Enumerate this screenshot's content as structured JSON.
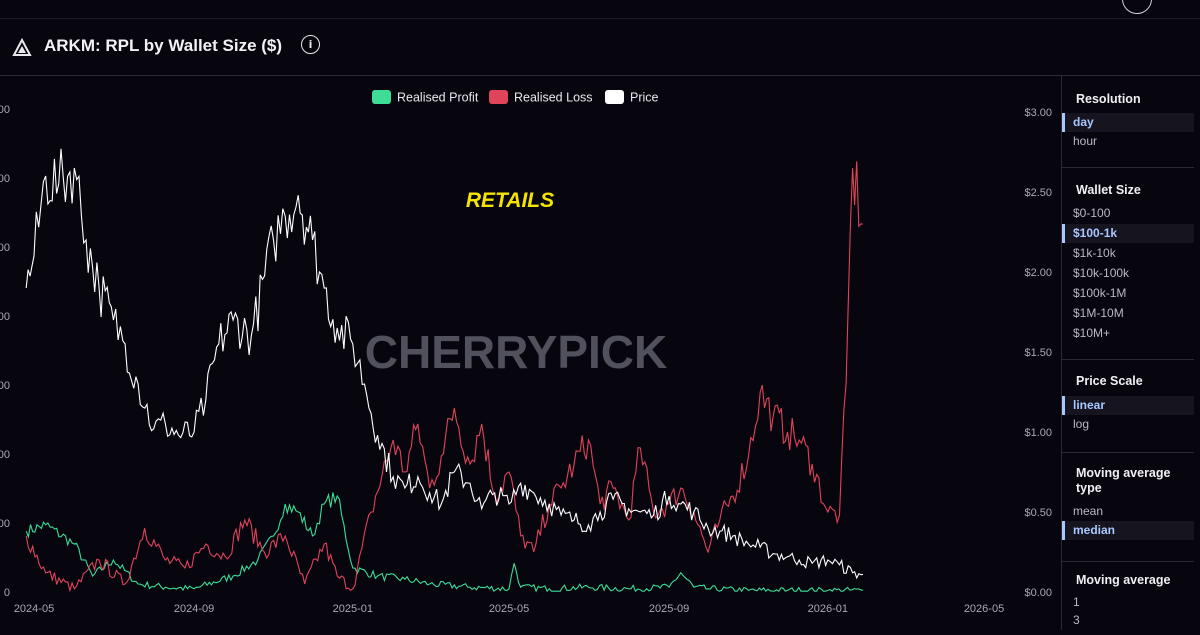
{
  "header": {
    "title": "ARKM: RPL by Wallet Size ($)",
    "info_icon": "info-circle-icon",
    "logo_icon": "arkham-logo-icon"
  },
  "sidebar": {
    "resolution": {
      "title": "Resolution",
      "options": [
        "day",
        "hour"
      ],
      "selected": 0
    },
    "wallet_size": {
      "title": "Wallet Size",
      "options": [
        "$0-100",
        "$100-1k",
        "$1k-10k",
        "$10k-100k",
        "$100k-1M",
        "$1M-10M",
        "$10M+"
      ],
      "selected": 1
    },
    "price_scale": {
      "title": "Price Scale",
      "options": [
        "linear",
        "log"
      ],
      "selected": 0
    },
    "ma_type": {
      "title": "Moving average type",
      "options": [
        "mean",
        "median"
      ],
      "selected": 1
    },
    "ma": {
      "title": "Moving average",
      "options": [
        "1",
        "3"
      ],
      "selected": -1
    }
  },
  "chart_data": {
    "type": "line",
    "legend": [
      {
        "name": "Realised Profit",
        "color": "#3ddc97"
      },
      {
        "name": "Realised Loss",
        "color": "#e0435a"
      },
      {
        "name": "Price",
        "color": "#ffffff"
      }
    ],
    "legend_position": "top-center",
    "annotation": "RETAILS",
    "watermark": "CHERRYPICK",
    "x_ticks": [
      "2024-05",
      "2024-09",
      "2025-01",
      "2025-05",
      "2025-09",
      "2026-01",
      "2026-05"
    ],
    "right_axis": {
      "ticks": [
        "$0.00",
        "$0.50",
        "$1.00",
        "$1.50",
        "$2.00",
        "$2.50",
        "$3.00"
      ],
      "range": [
        0,
        3
      ]
    },
    "left_axis_partial_labels": [
      "0",
      "00",
      "00",
      "00",
      "00",
      "00",
      "00",
      "00",
      "00"
    ],
    "price": {
      "x": [
        "2024-04-25",
        "2024-05-01",
        "2024-05-10",
        "2024-05-20",
        "2024-06-01",
        "2024-06-10",
        "2024-06-20",
        "2024-07-01",
        "2024-07-10",
        "2024-07-20",
        "2024-08-01",
        "2024-08-10",
        "2024-08-20",
        "2024-09-01",
        "2024-09-10",
        "2024-09-20",
        "2024-10-01",
        "2024-10-15",
        "2024-11-01",
        "2024-11-10",
        "2024-11-20",
        "2024-12-01",
        "2024-12-10",
        "2024-12-20",
        "2025-01-01",
        "2025-01-10",
        "2025-01-20",
        "2025-02-01",
        "2025-02-10",
        "2025-02-20",
        "2025-03-01",
        "2025-03-10",
        "2025-03-20",
        "2025-04-01",
        "2025-04-10",
        "2025-04-20",
        "2025-05-01",
        "2025-05-10",
        "2025-05-20",
        "2025-06-01",
        "2025-06-10",
        "2025-06-20",
        "2025-07-01",
        "2025-07-10",
        "2025-07-20",
        "2025-08-01",
        "2025-08-10",
        "2025-08-20",
        "2025-09-01",
        "2025-09-10",
        "2025-09-20",
        "2025-10-01",
        "2025-10-10",
        "2025-10-20",
        "2025-11-01",
        "2025-11-10",
        "2025-11-20",
        "2025-12-01",
        "2025-12-10",
        "2025-12-20",
        "2026-01-01",
        "2026-01-10",
        "2026-01-20",
        "2026-01-28"
      ],
      "y": [
        1.9,
        2.1,
        2.6,
        2.55,
        2.65,
        2.2,
        1.9,
        1.7,
        1.55,
        1.3,
        1.02,
        1.05,
        0.98,
        1.0,
        1.2,
        1.55,
        1.7,
        1.6,
        2.2,
        2.35,
        2.48,
        2.2,
        1.9,
        1.65,
        1.55,
        1.3,
        0.98,
        0.72,
        0.65,
        0.72,
        0.62,
        0.55,
        0.75,
        0.68,
        0.52,
        0.62,
        0.55,
        0.68,
        0.62,
        0.55,
        0.48,
        0.45,
        0.42,
        0.5,
        0.58,
        0.52,
        0.5,
        0.48,
        0.6,
        0.55,
        0.5,
        0.4,
        0.38,
        0.35,
        0.3,
        0.28,
        0.24,
        0.22,
        0.2,
        0.18,
        0.2,
        0.17,
        0.12,
        0.11
      ]
    },
    "realised_loss": {
      "x": [
        "2024-04-25",
        "2024-05-10",
        "2024-06-01",
        "2024-06-20",
        "2024-07-10",
        "2024-07-25",
        "2024-08-10",
        "2024-08-25",
        "2024-09-10",
        "2024-09-25",
        "2024-10-10",
        "2024-10-25",
        "2024-11-10",
        "2024-11-25",
        "2024-12-10",
        "2024-12-20",
        "2025-01-01",
        "2025-01-15",
        "2025-02-01",
        "2025-02-10",
        "2025-02-20",
        "2025-03-01",
        "2025-03-10",
        "2025-03-20",
        "2025-04-01",
        "2025-04-10",
        "2025-04-20",
        "2025-05-01",
        "2025-05-10",
        "2025-05-20",
        "2025-06-01",
        "2025-06-10",
        "2025-06-20",
        "2025-07-01",
        "2025-07-10",
        "2025-07-20",
        "2025-08-01",
        "2025-08-10",
        "2025-08-20",
        "2025-09-01",
        "2025-09-10",
        "2025-09-20",
        "2025-10-01",
        "2025-10-10",
        "2025-10-20",
        "2025-11-01",
        "2025-11-10",
        "2025-11-20",
        "2025-12-01",
        "2025-12-10",
        "2025-12-20",
        "2026-01-01",
        "2026-01-10",
        "2026-01-15",
        "2026-01-20",
        "2026-01-28"
      ],
      "y": [
        0.35,
        0.12,
        0.02,
        0.2,
        0.05,
        0.4,
        0.2,
        0.15,
        0.3,
        0.22,
        0.45,
        0.25,
        0.35,
        0.05,
        0.3,
        0.1,
        0.02,
        0.5,
        0.95,
        0.75,
        1.05,
        0.65,
        0.85,
        1.15,
        0.8,
        1.05,
        0.6,
        0.75,
        0.35,
        0.25,
        0.55,
        0.65,
        0.8,
        0.95,
        0.55,
        0.65,
        0.45,
        0.9,
        0.5,
        0.55,
        0.65,
        0.5,
        0.25,
        0.45,
        0.6,
        0.85,
        1.25,
        1.1,
        1.0,
        0.95,
        0.8,
        0.5,
        0.48,
        1.3,
        2.65,
        2.3
      ]
    },
    "realised_profit": {
      "x": [
        "2024-04-25",
        "2024-05-10",
        "2024-06-01",
        "2024-06-15",
        "2024-07-01",
        "2024-07-20",
        "2024-08-10",
        "2024-09-01",
        "2024-10-01",
        "2024-10-20",
        "2024-11-01",
        "2024-11-10",
        "2024-11-20",
        "2024-12-01",
        "2024-12-10",
        "2024-12-20",
        "2025-01-01",
        "2025-01-20",
        "2025-02-10",
        "2025-03-01",
        "2025-04-01",
        "2025-05-01",
        "2025-05-05",
        "2025-05-10",
        "2025-06-01",
        "2025-07-01",
        "2025-08-01",
        "2025-09-01",
        "2025-09-10",
        "2025-09-20",
        "2025-10-01",
        "2025-11-01",
        "2025-12-01",
        "2026-01-01",
        "2026-01-28"
      ],
      "y": [
        0.38,
        0.42,
        0.3,
        0.1,
        0.2,
        0.05,
        0.03,
        0.02,
        0.1,
        0.2,
        0.35,
        0.55,
        0.5,
        0.35,
        0.55,
        0.6,
        0.15,
        0.1,
        0.08,
        0.05,
        0.03,
        0.02,
        0.18,
        0.03,
        0.02,
        0.03,
        0.02,
        0.03,
        0.12,
        0.03,
        0.02,
        0.01,
        0.01,
        0.01,
        0.01
      ]
    }
  }
}
